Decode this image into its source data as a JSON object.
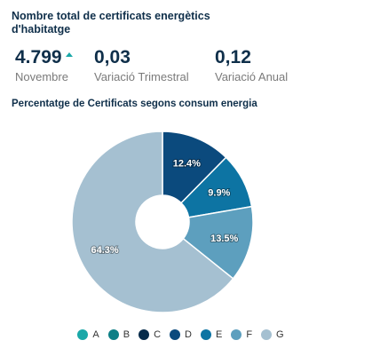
{
  "header": {
    "title": "Nombre total de certificats energètics d'habitatge"
  },
  "kpis": [
    {
      "value": "4.799",
      "label": "Novembre",
      "trend": "up"
    },
    {
      "value": "0,03",
      "label": "Variació Trimestral"
    },
    {
      "value": "0,12",
      "label": "Variació Anual"
    }
  ],
  "chart_data": {
    "type": "pie",
    "style": "donut",
    "title": "Percentatge de Certificats segons consum energia",
    "categories": [
      "A",
      "B",
      "C",
      "D",
      "E",
      "F",
      "G"
    ],
    "values": [
      0,
      0,
      0,
      12.4,
      9.9,
      13.5,
      64.3
    ],
    "labels": [
      "",
      "",
      "",
      "12.4%",
      "9.9%",
      "13.5%",
      "64.3%"
    ],
    "colors": [
      "#1aa8a8",
      "#0d7f86",
      "#062b4a",
      "#0b4a7d",
      "#0d74a3",
      "#5d9fbe",
      "#a5c0d1"
    ],
    "legend_position": "bottom"
  },
  "colors": {
    "text_dark": "#0f2f4a",
    "text_muted": "#7a7a7a",
    "trend_up": "#1aa8a8"
  }
}
